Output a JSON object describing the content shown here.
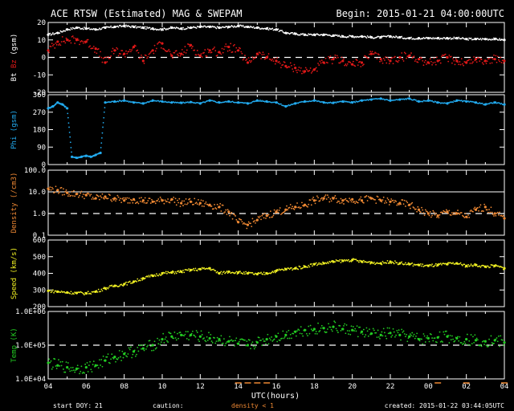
{
  "header": {
    "title": "ACE RTSW (Estimated) MAG & SWEPAM",
    "begin": "Begin: 2015-01-21 04:00:00UTC"
  },
  "footer": {
    "start_doy_label": "start DOY:",
    "start_doy_value": "21",
    "caution_label": "caution:",
    "density_note": "density < 1",
    "created": "created: 2015-01-22 03:44:05UTC",
    "xlabel": "UTC(hours)"
  },
  "colors": {
    "background": "#000000",
    "frame": "#ffffff",
    "bt": "#ffffff",
    "bz": "#e01818",
    "phi": "#22aaee",
    "density": "#ee8833",
    "speed": "#eeee22",
    "temp": "#22cc22",
    "caution": "#ee8833"
  },
  "chart_data": [
    {
      "type": "scatter",
      "panel": "mag",
      "ylabel_parts": [
        "Bt",
        "Bz",
        "(gsm)"
      ],
      "ylim": [
        -20,
        20
      ],
      "yticks": [
        "20",
        "10",
        "0",
        "-10",
        "-20"
      ],
      "ytick_values": [
        20,
        10,
        0,
        -10,
        -20
      ],
      "dashed_ref": 0,
      "x_range_hours": [
        0,
        24
      ],
      "series": [
        {
          "name": "Bt",
          "color_key": "bt",
          "x": [
            0,
            0.5,
            1,
            1.5,
            2,
            2.5,
            3,
            3.5,
            4,
            4.5,
            5,
            5.5,
            6,
            6.5,
            7,
            7.5,
            8,
            8.5,
            9,
            9.5,
            10,
            10.5,
            11,
            11.5,
            12,
            12.5,
            13,
            13.5,
            14,
            14.5,
            15,
            15.5,
            16,
            16.5,
            17,
            17.5,
            18,
            18.5,
            19,
            19.5,
            20,
            20.5,
            21,
            21.5,
            22,
            22.5,
            23,
            23.5,
            24
          ],
          "values": [
            13,
            14,
            16,
            17,
            16.5,
            16,
            17,
            17.5,
            18,
            17.5,
            17,
            16.5,
            16,
            17,
            16.5,
            17,
            17.5,
            17.5,
            17,
            17.5,
            18,
            17.5,
            17,
            16.5,
            16,
            14,
            13.5,
            13,
            13,
            13,
            12.5,
            12,
            12,
            12,
            11.5,
            11.5,
            12,
            11.5,
            11,
            11,
            11,
            11,
            11,
            11,
            10.5,
            10.5,
            10.5,
            10.5,
            10
          ]
        },
        {
          "name": "Bz",
          "color_key": "bz",
          "x": [
            0,
            0.5,
            1,
            1.5,
            2,
            2.5,
            3,
            3.5,
            4,
            4.5,
            5,
            5.5,
            6,
            6.5,
            7,
            7.5,
            8,
            8.5,
            9,
            9.5,
            10,
            10.5,
            11,
            11.5,
            12,
            12.5,
            13,
            13.5,
            14,
            14.5,
            15,
            15.5,
            16,
            16.5,
            17,
            17.5,
            18,
            18.5,
            19,
            19.5,
            20,
            20.5,
            21,
            21.5,
            22,
            22.5,
            23,
            23.5,
            24
          ],
          "values": [
            4,
            9,
            10,
            10,
            9,
            5,
            -3,
            4,
            2,
            6,
            -2,
            4,
            8,
            1,
            2,
            7,
            1,
            4,
            3,
            6,
            4,
            -3,
            2,
            0,
            -2,
            -5,
            -6,
            -8,
            -7,
            -3,
            -1,
            -2,
            -4,
            -3,
            2,
            -1,
            -2,
            0,
            1,
            -1,
            -3,
            -2,
            0,
            -2,
            -3,
            -1,
            -2,
            -1,
            -2
          ]
        }
      ]
    },
    {
      "type": "scatter",
      "panel": "phi",
      "ylabel_parts": [
        "Phi (gsm)"
      ],
      "ylim": [
        0,
        360
      ],
      "yticks": [
        "360",
        "270",
        "180",
        "90",
        "0"
      ],
      "ytick_values": [
        360,
        270,
        180,
        90,
        0
      ],
      "series": [
        {
          "name": "Phi",
          "color_key": "phi",
          "x": [
            0,
            0.25,
            0.5,
            0.75,
            1,
            1.25,
            1.5,
            1.75,
            2,
            2.25,
            2.5,
            2.75,
            3,
            3.5,
            4,
            4.5,
            5,
            5.5,
            6,
            6.5,
            7,
            7.5,
            8,
            8.5,
            9,
            9.5,
            10,
            10.5,
            11,
            11.5,
            12,
            12.5,
            13,
            13.5,
            14,
            14.5,
            15,
            15.5,
            16,
            16.5,
            17,
            17.5,
            18,
            18.5,
            19,
            19.5,
            20,
            20.5,
            21,
            21.5,
            22,
            22.5,
            23,
            23.5,
            24
          ],
          "values": [
            290,
            300,
            320,
            310,
            290,
            40,
            35,
            40,
            45,
            40,
            50,
            60,
            320,
            325,
            330,
            320,
            315,
            330,
            325,
            320,
            318,
            322,
            315,
            330,
            320,
            325,
            320,
            315,
            330,
            325,
            320,
            300,
            315,
            325,
            330,
            320,
            318,
            325,
            320,
            330,
            335,
            340,
            330,
            335,
            340,
            325,
            330,
            320,
            315,
            330,
            325,
            320,
            310,
            320,
            310
          ]
        }
      ]
    },
    {
      "type": "scatter",
      "panel": "density",
      "ylabel_parts": [
        "Density (/cm3)"
      ],
      "yscale": "log",
      "ylim": [
        0.1,
        100
      ],
      "yticks": [
        "100.0",
        "10.0",
        "1.0",
        "0.1"
      ],
      "ytick_values": [
        100,
        10,
        1,
        0.1
      ],
      "dashed_ref": 1,
      "solid_ref": 10,
      "series": [
        {
          "name": "Density",
          "color_key": "density",
          "x": [
            0,
            0.5,
            1,
            1.5,
            2,
            2.5,
            3,
            3.5,
            4,
            4.5,
            5,
            5.5,
            6,
            6.5,
            7,
            7.5,
            8,
            8.5,
            9,
            9.5,
            10,
            10.5,
            11,
            11.5,
            12,
            12.5,
            13,
            13.5,
            14,
            14.5,
            15,
            15.5,
            16,
            16.5,
            17,
            17.5,
            18,
            18.5,
            19,
            19.5,
            20,
            20.5,
            21,
            21.5,
            22,
            22.5,
            23,
            23.5,
            24
          ],
          "values": [
            14,
            12,
            9,
            8,
            7,
            5,
            6,
            5,
            4,
            4.5,
            4,
            3.5,
            4,
            4.5,
            3,
            3.5,
            3,
            2.5,
            2,
            1.2,
            0.4,
            0.3,
            0.5,
            0.8,
            1.2,
            1.5,
            2,
            2.5,
            4,
            5,
            5,
            4,
            4.5,
            4,
            5,
            4,
            3.5,
            3,
            2.5,
            1.5,
            1,
            0.8,
            1.2,
            1,
            0.7,
            1.5,
            2,
            1,
            0.6
          ]
        }
      ]
    },
    {
      "type": "scatter",
      "panel": "speed",
      "ylabel_parts": [
        "Speed (km/s)"
      ],
      "ylim": [
        200,
        600
      ],
      "yticks": [
        "600",
        "500",
        "400",
        "300",
        "200"
      ],
      "ytick_values": [
        600,
        500,
        400,
        300,
        200
      ],
      "series": [
        {
          "name": "Speed",
          "color_key": "speed",
          "x": [
            0,
            0.5,
            1,
            1.5,
            2,
            2.5,
            3,
            3.5,
            4,
            4.5,
            5,
            5.5,
            6,
            6.5,
            7,
            7.5,
            8,
            8.5,
            9,
            9.5,
            10,
            10.5,
            11,
            11.5,
            12,
            12.5,
            13,
            13.5,
            14,
            14.5,
            15,
            15.5,
            16,
            16.5,
            17,
            17.5,
            18,
            18.5,
            19,
            19.5,
            20,
            20.5,
            21,
            21.5,
            22,
            22.5,
            23,
            23.5,
            24
          ],
          "values": [
            295,
            290,
            285,
            282,
            280,
            290,
            310,
            325,
            335,
            350,
            370,
            385,
            400,
            405,
            410,
            420,
            425,
            430,
            400,
            410,
            405,
            400,
            395,
            400,
            415,
            425,
            430,
            440,
            455,
            460,
            470,
            475,
            480,
            470,
            465,
            460,
            470,
            460,
            455,
            450,
            445,
            450,
            455,
            460,
            445,
            450,
            440,
            445,
            430
          ]
        }
      ]
    },
    {
      "type": "scatter",
      "panel": "temp",
      "ylabel_parts": [
        "Temp (K)"
      ],
      "yscale": "log",
      "ylim": [
        10000,
        1000000
      ],
      "yticks": [
        "1.0E+06",
        "1.0E+05",
        "1.0E+04"
      ],
      "ytick_values": [
        1000000,
        100000,
        10000
      ],
      "dashed_ref": 100000,
      "xticks": [
        "04",
        "06",
        "08",
        "10",
        "12",
        "14",
        "16",
        "18",
        "20",
        "22",
        "00",
        "02",
        "04"
      ],
      "series": [
        {
          "name": "Temp",
          "color_key": "temp",
          "x": [
            0,
            0.5,
            1,
            1.5,
            2,
            2.5,
            3,
            3.5,
            4,
            4.5,
            5,
            5.5,
            6,
            6.5,
            7,
            7.5,
            8,
            8.5,
            9,
            9.5,
            10,
            10.5,
            11,
            11.5,
            12,
            12.5,
            13,
            13.5,
            14,
            14.5,
            15,
            15.5,
            16,
            16.5,
            17,
            17.5,
            18,
            18.5,
            19,
            19.5,
            20,
            20.5,
            21,
            21.5,
            22,
            22.5,
            23,
            23.5,
            24
          ],
          "values": [
            30000,
            25000,
            22000,
            20000,
            22000,
            25000,
            35000,
            45000,
            55000,
            65000,
            80000,
            100000,
            150000,
            180000,
            200000,
            200000,
            180000,
            160000,
            150000,
            130000,
            110000,
            100000,
            120000,
            150000,
            180000,
            200000,
            250000,
            280000,
            300000,
            320000,
            350000,
            300000,
            280000,
            250000,
            220000,
            200000,
            230000,
            200000,
            180000,
            150000,
            160000,
            170000,
            180000,
            160000,
            150000,
            140000,
            130000,
            140000,
            120000
          ]
        }
      ]
    }
  ]
}
